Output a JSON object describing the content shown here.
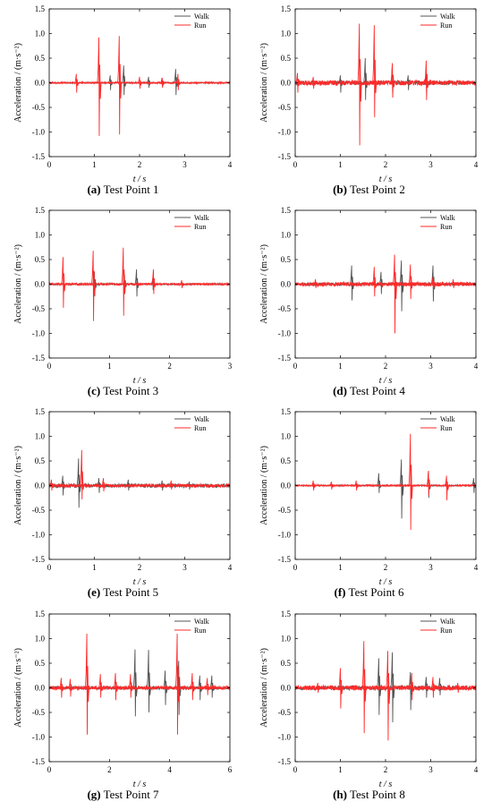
{
  "chart_data": [
    {
      "type": "line",
      "caption_label": "(a)",
      "caption_text": "Test Point 1",
      "xlabel": "t / s",
      "ylabel": "Acceleration / (m·s⁻²)",
      "xlim": [
        0,
        4
      ],
      "ylim": [
        -1.5,
        1.5
      ],
      "xticks": [
        0,
        1,
        2,
        3,
        4
      ],
      "yticks": [
        -1.5,
        -1.0,
        -0.5,
        0.0,
        0.5,
        1.0,
        1.5
      ],
      "grid": false,
      "legend_position": "top-right",
      "series": [
        {
          "name": "Walk",
          "color": "#555555",
          "noise": 0.01,
          "spikes": [
            [
              1.35,
              0.15,
              -0.15
            ],
            [
              1.65,
              0.35,
              -0.25
            ],
            [
              2.2,
              0.12,
              -0.1
            ],
            [
              2.5,
              0.1,
              -0.08
            ],
            [
              2.8,
              0.28,
              -0.25
            ]
          ]
        },
        {
          "name": "Run",
          "color": "#ff2a2a",
          "noise": 0.015,
          "spikes": [
            [
              0.6,
              0.18,
              -0.2
            ],
            [
              1.1,
              0.92,
              -1.08
            ],
            [
              1.55,
              0.95,
              -1.05
            ],
            [
              2.0,
              0.12,
              -0.12
            ],
            [
              2.5,
              0.1,
              -0.1
            ],
            [
              2.85,
              0.18,
              -0.15
            ]
          ]
        }
      ]
    },
    {
      "type": "line",
      "caption_label": "(b)",
      "caption_text": "Test Point 2",
      "xlabel": "t / s",
      "ylabel": "Acceleration / (m·s⁻²)",
      "xlim": [
        0,
        4
      ],
      "ylim": [
        -1.5,
        1.5
      ],
      "xticks": [
        0,
        1,
        2,
        3,
        4
      ],
      "yticks": [
        -1.5,
        -1.0,
        -0.5,
        0.0,
        0.5,
        1.0,
        1.5
      ],
      "grid": false,
      "legend_position": "top-right",
      "series": [
        {
          "name": "Walk",
          "color": "#555555",
          "noise": 0.04,
          "spikes": [
            [
              1.0,
              0.15,
              -0.2
            ],
            [
              1.55,
              0.5,
              -0.35
            ],
            [
              2.15,
              0.35,
              -0.3
            ],
            [
              2.5,
              0.15,
              -0.15
            ],
            [
              2.9,
              0.2,
              -0.2
            ]
          ]
        },
        {
          "name": "Run",
          "color": "#ff2a2a",
          "noise": 0.05,
          "spikes": [
            [
              0.05,
              0.2,
              -0.2
            ],
            [
              0.4,
              0.12,
              -0.12
            ],
            [
              1.42,
              1.2,
              -1.27
            ],
            [
              1.75,
              1.17,
              -0.7
            ],
            [
              2.15,
              0.4,
              -0.3
            ],
            [
              2.9,
              0.45,
              -0.35
            ]
          ]
        }
      ]
    },
    {
      "type": "line",
      "caption_label": "(c)",
      "caption_text": "Test Point 3",
      "xlabel": "t / s",
      "ylabel": "Acceleration / (m·s⁻²)",
      "xlim": [
        0,
        3
      ],
      "ylim": [
        -1.5,
        1.5
      ],
      "xticks": [
        0,
        1,
        2,
        3
      ],
      "yticks": [
        -1.5,
        -1.0,
        -0.5,
        0.0,
        0.5,
        1.0,
        1.5
      ],
      "grid": false,
      "legend_position": "top-right",
      "series": [
        {
          "name": "Walk",
          "color": "#555555",
          "noise": 0.015,
          "spikes": [
            [
              0.75,
              0.25,
              -0.25
            ],
            [
              1.25,
              0.2,
              -0.2
            ],
            [
              1.45,
              0.3,
              -0.25
            ],
            [
              1.72,
              0.12,
              -0.12
            ]
          ]
        },
        {
          "name": "Run",
          "color": "#ff2a2a",
          "noise": 0.02,
          "spikes": [
            [
              0.23,
              0.55,
              -0.48
            ],
            [
              0.73,
              0.68,
              -0.75
            ],
            [
              1.23,
              0.74,
              -0.64
            ],
            [
              1.73,
              0.3,
              -0.2
            ],
            [
              2.2,
              0.08,
              -0.08
            ]
          ]
        }
      ]
    },
    {
      "type": "line",
      "caption_label": "(d)",
      "caption_text": "Test Point 4",
      "xlabel": "t / s",
      "ylabel": "Acceleration / (m·s⁻²)",
      "xlim": [
        0,
        4
      ],
      "ylim": [
        -1.5,
        1.5
      ],
      "xticks": [
        0,
        1,
        2,
        3,
        4
      ],
      "yticks": [
        -1.5,
        -1.0,
        -0.5,
        0.0,
        0.5,
        1.0,
        1.5
      ],
      "grid": false,
      "legend_position": "top-right",
      "series": [
        {
          "name": "Walk",
          "color": "#555555",
          "noise": 0.03,
          "spikes": [
            [
              1.25,
              0.38,
              -0.33
            ],
            [
              1.9,
              0.25,
              -0.2
            ],
            [
              2.35,
              0.48,
              -0.55
            ],
            [
              3.05,
              0.38,
              -0.35
            ]
          ]
        },
        {
          "name": "Run",
          "color": "#ff2a2a",
          "noise": 0.04,
          "spikes": [
            [
              0.45,
              0.1,
              -0.08
            ],
            [
              1.75,
              0.35,
              -0.25
            ],
            [
              2.2,
              0.6,
              -1.0
            ],
            [
              2.55,
              0.4,
              -0.3
            ],
            [
              3.05,
              0.15,
              -0.12
            ],
            [
              3.5,
              0.1,
              -0.08
            ]
          ]
        }
      ]
    },
    {
      "type": "line",
      "caption_label": "(e)",
      "caption_text": "Test Point 5",
      "xlabel": "t / s",
      "ylabel": "Acceleration / (m·s⁻²)",
      "xlim": [
        0,
        4
      ],
      "ylim": [
        -1.5,
        1.5
      ],
      "xticks": [
        0,
        1,
        2,
        3,
        4
      ],
      "yticks": [
        -1.5,
        -1.0,
        -0.5,
        0.0,
        0.5,
        1.0,
        1.5
      ],
      "grid": false,
      "legend_position": "top-right",
      "series": [
        {
          "name": "Walk",
          "color": "#555555",
          "noise": 0.04,
          "spikes": [
            [
              0.3,
              0.2,
              -0.2
            ],
            [
              0.65,
              0.55,
              -0.45
            ],
            [
              1.1,
              0.15,
              -0.15
            ],
            [
              1.75,
              0.12,
              -0.1
            ],
            [
              2.5,
              0.1,
              -0.1
            ],
            [
              3.1,
              0.08,
              -0.08
            ]
          ]
        },
        {
          "name": "Run",
          "color": "#ff2a2a",
          "noise": 0.03,
          "spikes": [
            [
              0.05,
              0.12,
              -0.1
            ],
            [
              0.72,
              0.72,
              -0.28
            ],
            [
              1.2,
              0.15,
              -0.12
            ],
            [
              2.7,
              0.1,
              -0.08
            ]
          ]
        }
      ]
    },
    {
      "type": "line",
      "caption_label": "(f)",
      "caption_text": "Test Point 6",
      "xlabel": "t / s",
      "ylabel": "Acceleration / (m·s⁻²)",
      "xlim": [
        0,
        4
      ],
      "ylim": [
        -1.5,
        1.5
      ],
      "xticks": [
        0,
        1,
        2,
        3,
        4
      ],
      "yticks": [
        -1.5,
        -1.0,
        -0.5,
        0.0,
        0.5,
        1.0,
        1.5
      ],
      "grid": false,
      "legend_position": "top-right",
      "series": [
        {
          "name": "Walk",
          "color": "#555555",
          "noise": 0.01,
          "spikes": [
            [
              1.85,
              0.25,
              -0.15
            ],
            [
              2.35,
              0.53,
              -0.67
            ],
            [
              2.95,
              0.3,
              -0.25
            ],
            [
              3.95,
              0.15,
              -0.15
            ]
          ]
        },
        {
          "name": "Run",
          "color": "#ff2a2a",
          "noise": 0.015,
          "spikes": [
            [
              0.4,
              0.1,
              -0.1
            ],
            [
              0.8,
              0.08,
              -0.08
            ],
            [
              1.35,
              0.1,
              -0.1
            ],
            [
              2.55,
              1.05,
              -0.9
            ],
            [
              2.95,
              0.3,
              -0.2
            ],
            [
              3.35,
              0.2,
              -0.3
            ]
          ]
        }
      ]
    },
    {
      "type": "line",
      "caption_label": "(g)",
      "caption_text": "Test Point 7",
      "xlabel": "t / s",
      "ylabel": "Acceleration / (m·s⁻²)",
      "xlim": [
        0,
        6
      ],
      "ylim": [
        -1.5,
        1.5
      ],
      "xticks": [
        0,
        2,
        4,
        6
      ],
      "yticks": [
        -1.5,
        -1.0,
        -0.5,
        0.0,
        0.5,
        1.0,
        1.5
      ],
      "grid": false,
      "legend_position": "top-right",
      "series": [
        {
          "name": "Walk",
          "color": "#555555",
          "noise": 0.03,
          "spikes": [
            [
              2.85,
              0.78,
              -0.58
            ],
            [
              3.3,
              0.77,
              -0.5
            ],
            [
              3.85,
              0.35,
              -0.35
            ],
            [
              4.3,
              0.55,
              -0.55
            ],
            [
              5.0,
              0.25,
              -0.25
            ],
            [
              5.4,
              0.25,
              -0.2
            ]
          ]
        },
        {
          "name": "Run",
          "color": "#ff2a2a",
          "noise": 0.04,
          "spikes": [
            [
              0.4,
              0.2,
              -0.2
            ],
            [
              0.7,
              0.18,
              -0.18
            ],
            [
              1.25,
              1.1,
              -0.95
            ],
            [
              1.7,
              0.28,
              -0.2
            ],
            [
              2.2,
              0.3,
              -0.25
            ],
            [
              2.7,
              0.28,
              -0.2
            ],
            [
              4.25,
              1.1,
              -0.95
            ],
            [
              4.75,
              0.3,
              -0.25
            ],
            [
              5.25,
              0.2,
              -0.15
            ]
          ]
        }
      ]
    },
    {
      "type": "line",
      "caption_label": "(h)",
      "caption_text": "Test Point 8",
      "xlabel": "t / s",
      "ylabel": "Acceleration / (m·s⁻²)",
      "xlim": [
        0,
        4
      ],
      "ylim": [
        -1.5,
        1.5
      ],
      "xticks": [
        0,
        1,
        2,
        3,
        4
      ],
      "yticks": [
        -1.5,
        -1.0,
        -0.5,
        0.0,
        0.5,
        1.0,
        1.5
      ],
      "grid": false,
      "legend_position": "top-right",
      "series": [
        {
          "name": "Walk",
          "color": "#555555",
          "noise": 0.04,
          "spikes": [
            [
              1.85,
              0.6,
              -0.55
            ],
            [
              2.15,
              0.72,
              -0.7
            ],
            [
              2.55,
              0.32,
              -0.45
            ],
            [
              2.9,
              0.22,
              -0.2
            ],
            [
              3.2,
              0.2,
              -0.15
            ]
          ]
        },
        {
          "name": "Run",
          "color": "#ff2a2a",
          "noise": 0.05,
          "spikes": [
            [
              0.5,
              0.1,
              -0.1
            ],
            [
              1.0,
              0.4,
              -0.42
            ],
            [
              1.52,
              0.95,
              -0.92
            ],
            [
              2.05,
              0.75,
              -1.07
            ],
            [
              2.58,
              0.3,
              -0.25
            ],
            [
              3.05,
              0.22,
              -0.2
            ],
            [
              3.6,
              0.1,
              -0.1
            ]
          ]
        }
      ]
    }
  ]
}
